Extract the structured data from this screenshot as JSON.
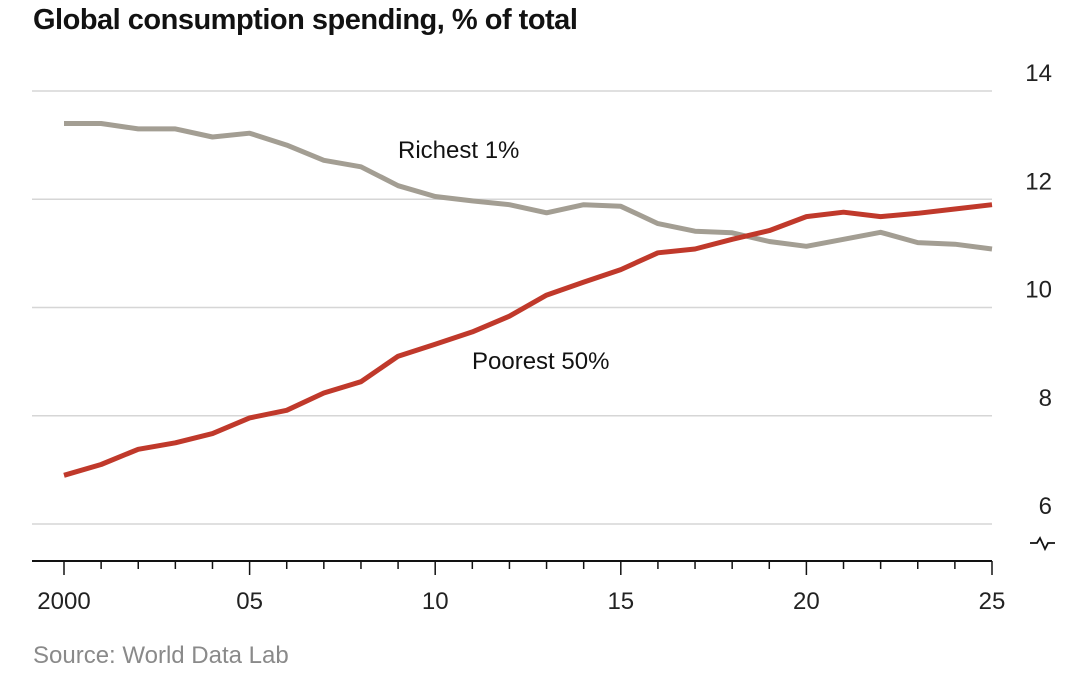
{
  "chart_data": {
    "type": "line",
    "title": "Global consumption spending, % of total",
    "source": "Source: World Data Lab",
    "xlabel": "",
    "ylabel": "",
    "xlim": [
      2000,
      2025
    ],
    "ylim": [
      6,
      14
    ],
    "y_ticks": [
      6,
      8,
      10,
      12,
      14
    ],
    "y_tick_labels": [
      "6",
      "8",
      "10",
      "12",
      "14"
    ],
    "x_ticks": [
      2000,
      2005,
      2010,
      2015,
      2020,
      2025
    ],
    "x_tick_labels": [
      "2000",
      "05",
      "10",
      "15",
      "20",
      "25"
    ],
    "grid": true,
    "y_axis_side": "right",
    "axis_break": true,
    "x": [
      2000,
      2001,
      2002,
      2003,
      2004,
      2005,
      2006,
      2007,
      2008,
      2009,
      2010,
      2011,
      2012,
      2013,
      2014,
      2015,
      2016,
      2017,
      2018,
      2019,
      2020,
      2021,
      2022,
      2023,
      2024,
      2025
    ],
    "series": [
      {
        "name": "Richest 1%",
        "color": "#a39e93",
        "values": [
          13.4,
          13.4,
          13.3,
          13.3,
          13.15,
          13.22,
          13.0,
          12.72,
          12.6,
          12.25,
          12.05,
          11.97,
          11.9,
          11.75,
          11.9,
          11.87,
          11.55,
          11.41,
          11.38,
          11.22,
          11.13,
          11.26,
          11.39,
          11.2,
          11.17,
          11.08
        ]
      },
      {
        "name": "Poorest 50%",
        "color": "#c0392b",
        "values": [
          6.9,
          7.1,
          7.38,
          7.5,
          7.67,
          7.96,
          8.1,
          8.42,
          8.63,
          9.1,
          9.32,
          9.55,
          9.84,
          10.23,
          10.47,
          10.7,
          11.01,
          11.08,
          11.26,
          11.42,
          11.68,
          11.76,
          11.68,
          11.74,
          11.82,
          11.9
        ]
      }
    ]
  }
}
